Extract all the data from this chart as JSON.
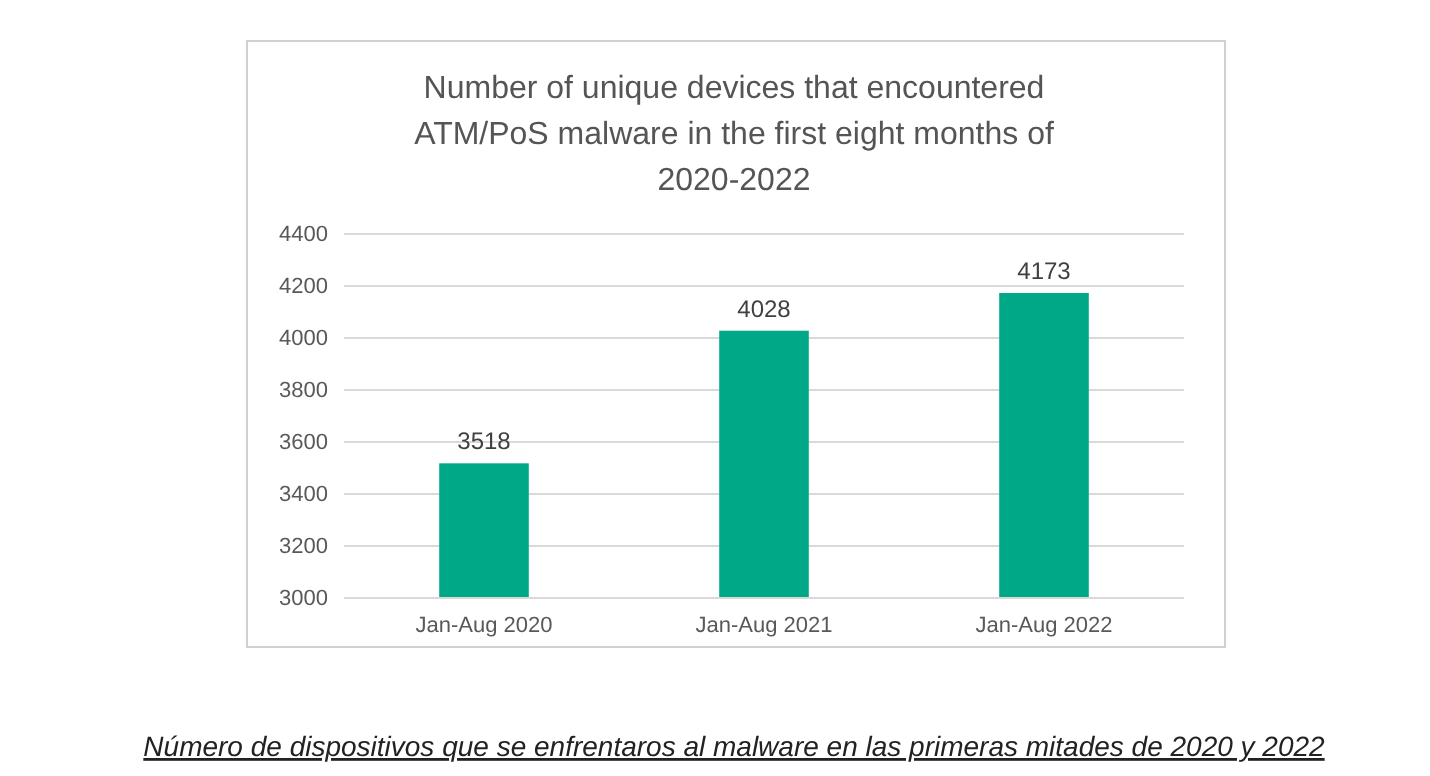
{
  "chart_data": {
    "type": "bar",
    "title": "Number of unique devices that encountered ATM/PoS malware in the first eight months of 2020-2022",
    "categories": [
      "Jan-Aug 2020",
      "Jan-Aug 2021",
      "Jan-Aug 2022"
    ],
    "values": [
      3518,
      4028,
      4173
    ],
    "color": "#00a887",
    "ylim": [
      3000,
      4400
    ],
    "yticks": [
      3000,
      3200,
      3400,
      3600,
      3800,
      4000,
      4200,
      4400
    ],
    "grid": "y",
    "data_labels": true,
    "annotations": [
      "Número de dispositivos que se enfrentaros al malware en las primeras mitades de 2020 y 2022"
    ]
  }
}
